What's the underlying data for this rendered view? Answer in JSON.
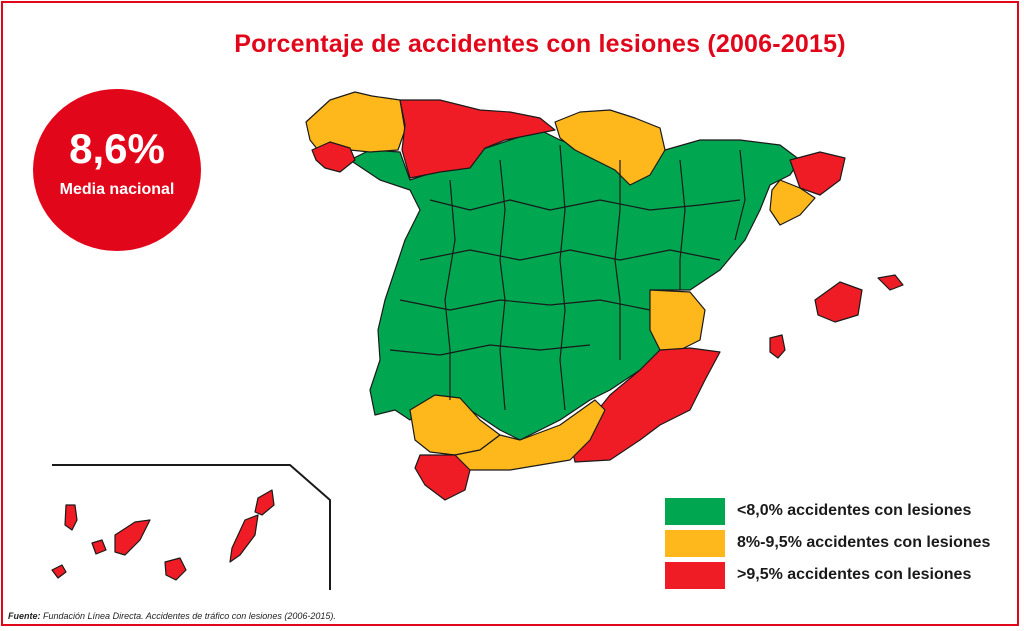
{
  "title": "Porcentaje de accidentes con lesiones (2006-2015)",
  "national_average": {
    "value": "8,6%",
    "label": "Media nacional"
  },
  "legend": [
    {
      "label": "<8,0% accidentes con lesiones",
      "color": "#00a650"
    },
    {
      "label": "8%-9,5% accidentes con lesiones",
      "color": "#ffb81c"
    },
    {
      "label": ">9,5% accidentes con lesiones",
      "color": "#ef1c25"
    }
  ],
  "colors": {
    "green": "#00a650",
    "amber": "#ffb81c",
    "red": "#ef1c25",
    "border": "#1a1a1a",
    "accent": "#e2061b"
  },
  "source": {
    "prefix": "Fuente:",
    "text": "Fundación Línea Directa. Accidentes de tráfico con lesiones (2006-2015)."
  }
}
